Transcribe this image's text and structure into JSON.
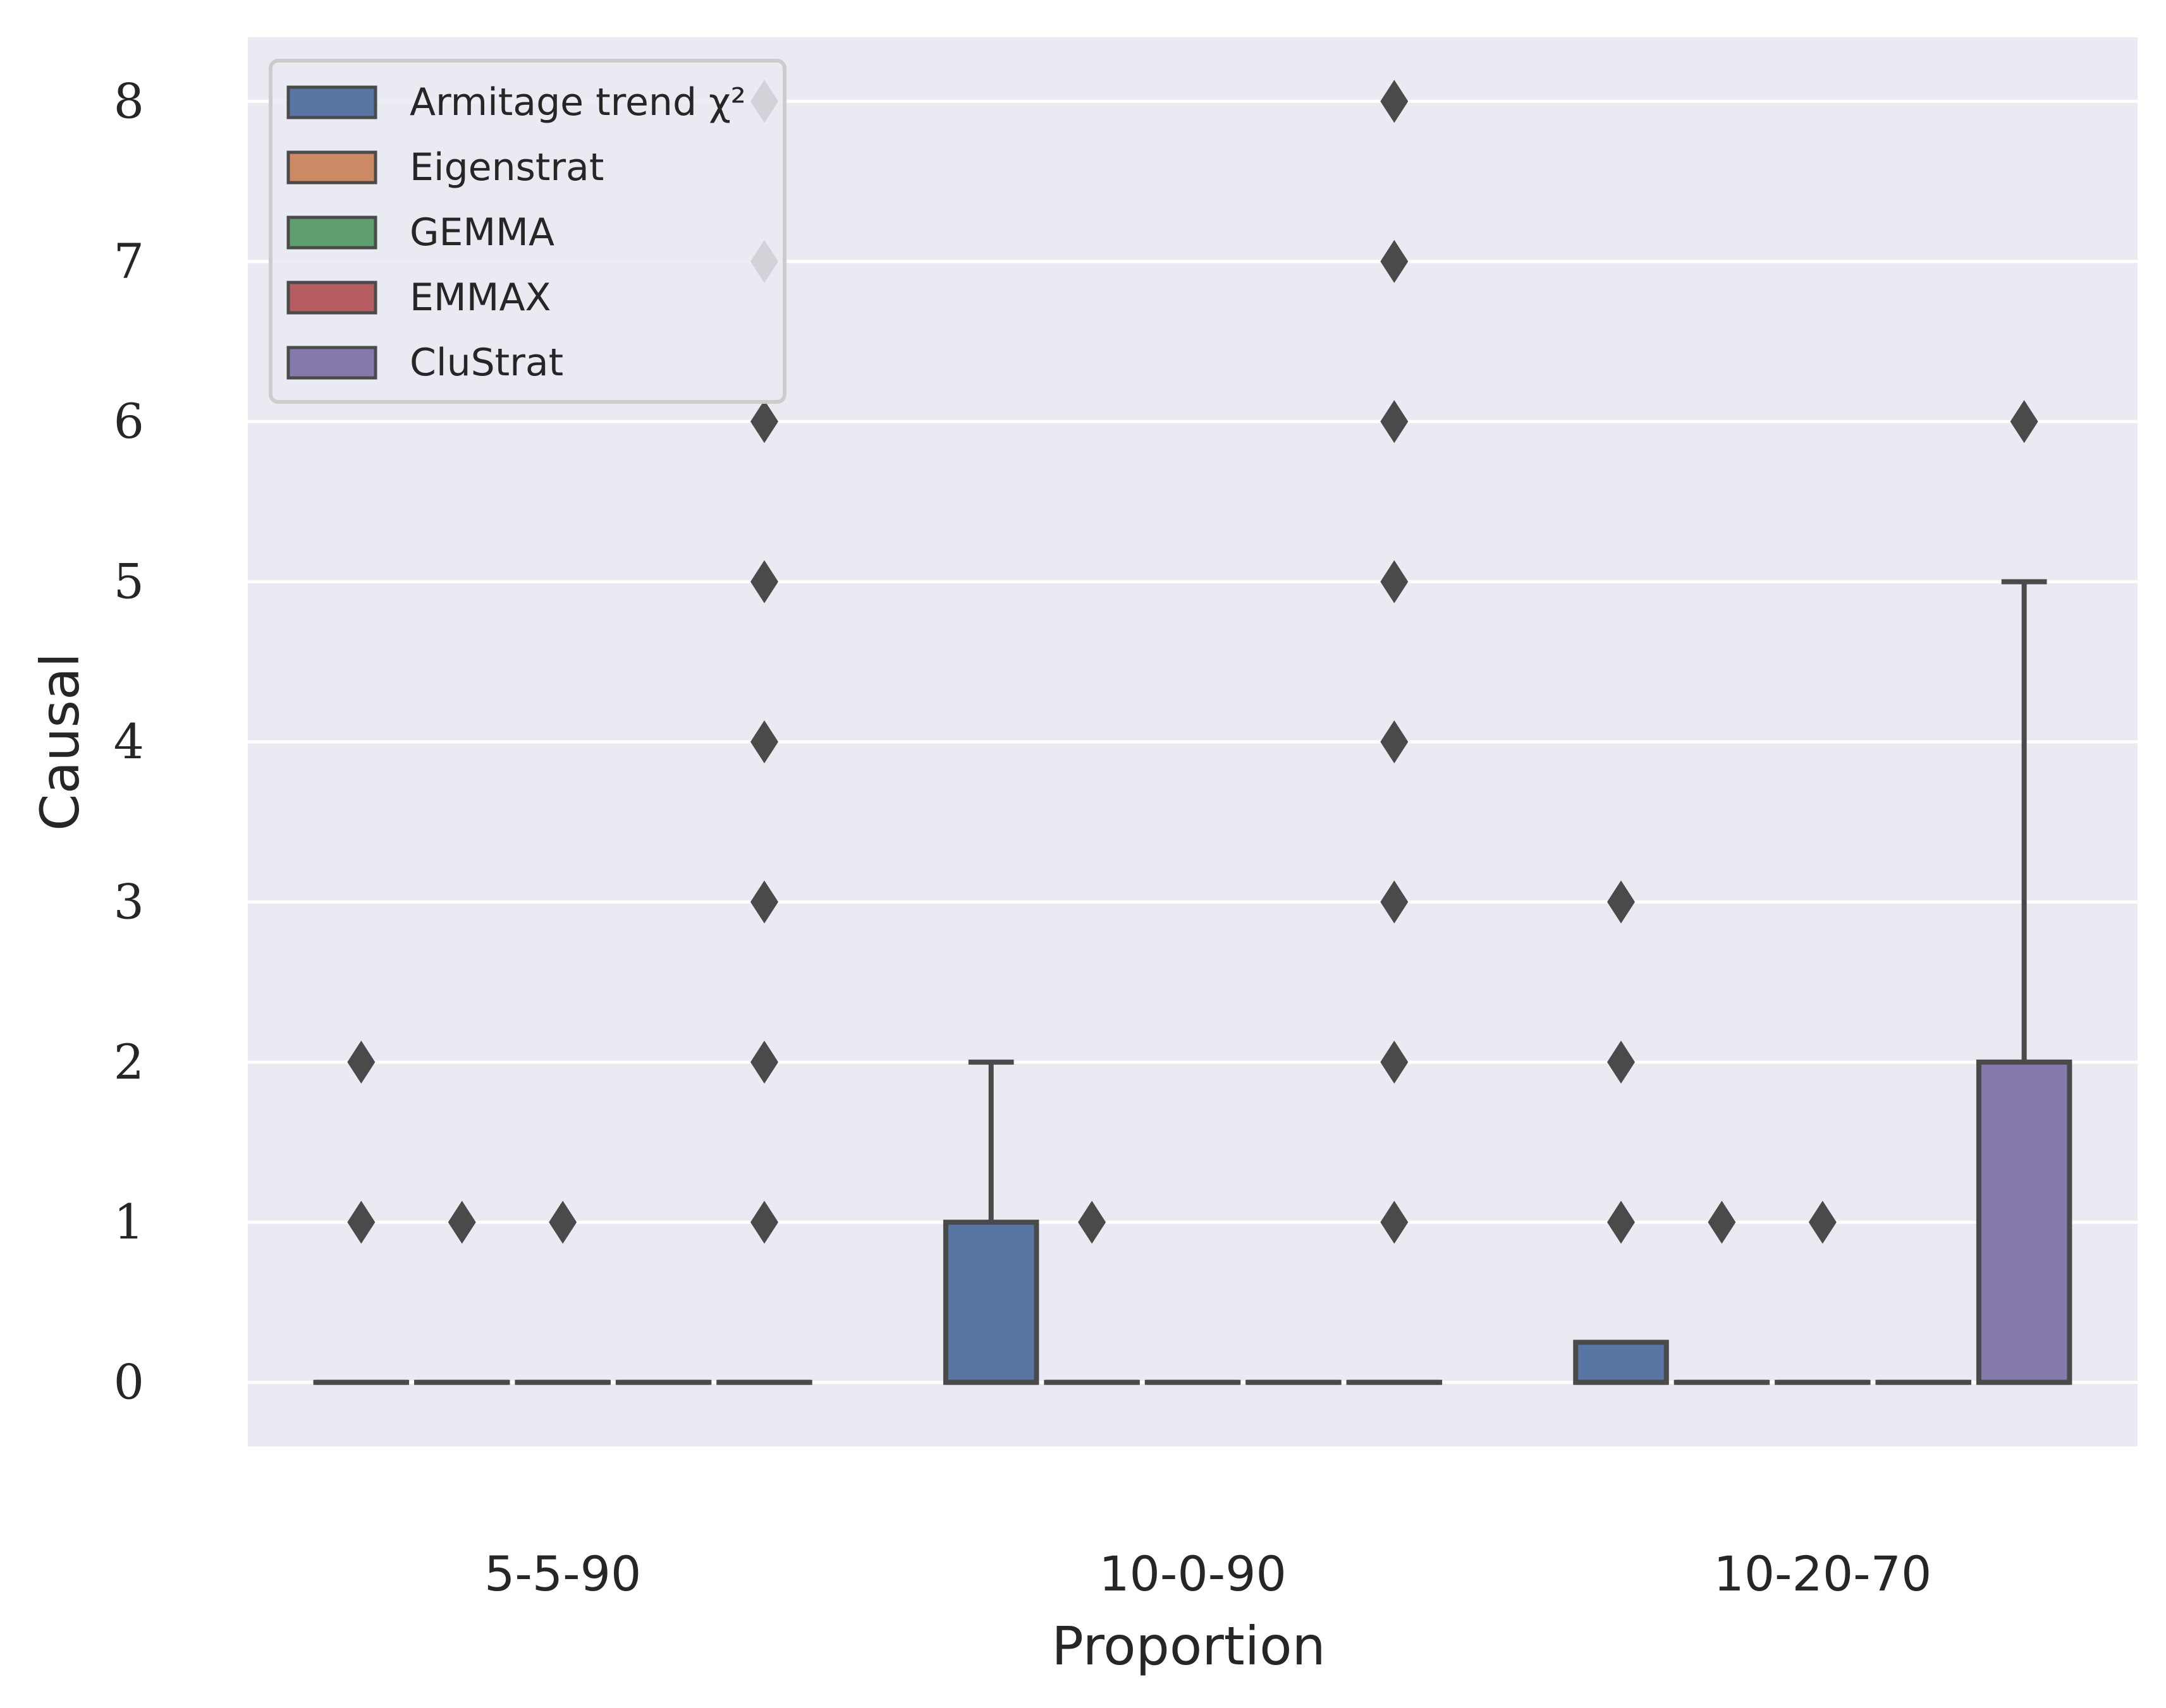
{
  "chart_data": {
    "type": "box",
    "xlabel": "Proportion",
    "ylabel": "Causal",
    "categories": [
      "5-5-90",
      "10-0-90",
      "10-20-70"
    ],
    "ylim": [
      -0.4,
      8.4
    ],
    "yticks": [
      0,
      1,
      2,
      3,
      4,
      5,
      6,
      7,
      8
    ],
    "grid": true,
    "legend_position": "upper-left",
    "series": [
      {
        "name": "Armitage trend χ²",
        "color": "#5875a4",
        "boxes": [
          {
            "category": "5-5-90",
            "q1": 0,
            "median": 0,
            "q3": 0,
            "whisker_low": 0,
            "whisker_high": 0,
            "outliers": [
              1,
              2
            ]
          },
          {
            "category": "10-0-90",
            "q1": 0,
            "median": 0,
            "q3": 1,
            "whisker_low": 0,
            "whisker_high": 2,
            "outliers": []
          },
          {
            "category": "10-20-70",
            "q1": 0,
            "median": 0,
            "q3": 0.25,
            "whisker_low": 0,
            "whisker_high": 0.25,
            "outliers": [
              1,
              2,
              3
            ]
          }
        ]
      },
      {
        "name": "Eigenstrat",
        "color": "#cc8963",
        "boxes": [
          {
            "category": "5-5-90",
            "q1": 0,
            "median": 0,
            "q3": 0,
            "whisker_low": 0,
            "whisker_high": 0,
            "outliers": [
              1
            ]
          },
          {
            "category": "10-0-90",
            "q1": 0,
            "median": 0,
            "q3": 0,
            "whisker_low": 0,
            "whisker_high": 0,
            "outliers": [
              1
            ]
          },
          {
            "category": "10-20-70",
            "q1": 0,
            "median": 0,
            "q3": 0,
            "whisker_low": 0,
            "whisker_high": 0,
            "outliers": [
              1
            ]
          }
        ]
      },
      {
        "name": "GEMMA",
        "color": "#5f9e6e",
        "boxes": [
          {
            "category": "5-5-90",
            "q1": 0,
            "median": 0,
            "q3": 0,
            "whisker_low": 0,
            "whisker_high": 0,
            "outliers": [
              1
            ]
          },
          {
            "category": "10-0-90",
            "q1": 0,
            "median": 0,
            "q3": 0,
            "whisker_low": 0,
            "whisker_high": 0,
            "outliers": []
          },
          {
            "category": "10-20-70",
            "q1": 0,
            "median": 0,
            "q3": 0,
            "whisker_low": 0,
            "whisker_high": 0,
            "outliers": [
              1
            ]
          }
        ]
      },
      {
        "name": "EMMAX",
        "color": "#b55d60",
        "boxes": [
          {
            "category": "5-5-90",
            "q1": 0,
            "median": 0,
            "q3": 0,
            "whisker_low": 0,
            "whisker_high": 0,
            "outliers": []
          },
          {
            "category": "10-0-90",
            "q1": 0,
            "median": 0,
            "q3": 0,
            "whisker_low": 0,
            "whisker_high": 0,
            "outliers": []
          },
          {
            "category": "10-20-70",
            "q1": 0,
            "median": 0,
            "q3": 0,
            "whisker_low": 0,
            "whisker_high": 0,
            "outliers": []
          }
        ]
      },
      {
        "name": "CluStrat",
        "color": "#857aab",
        "boxes": [
          {
            "category": "5-5-90",
            "q1": 0,
            "median": 0,
            "q3": 0,
            "whisker_low": 0,
            "whisker_high": 0,
            "outliers": [
              1,
              2,
              3,
              4,
              5,
              6,
              7,
              8
            ]
          },
          {
            "category": "10-0-90",
            "q1": 0,
            "median": 0,
            "q3": 0,
            "whisker_low": 0,
            "whisker_high": 0,
            "outliers": [
              1,
              2,
              3,
              4,
              5,
              6,
              7,
              8
            ]
          },
          {
            "category": "10-20-70",
            "q1": 0,
            "median": 0,
            "q3": 2,
            "whisker_low": 0,
            "whisker_high": 5,
            "outliers": [
              6
            ]
          }
        ]
      }
    ]
  }
}
